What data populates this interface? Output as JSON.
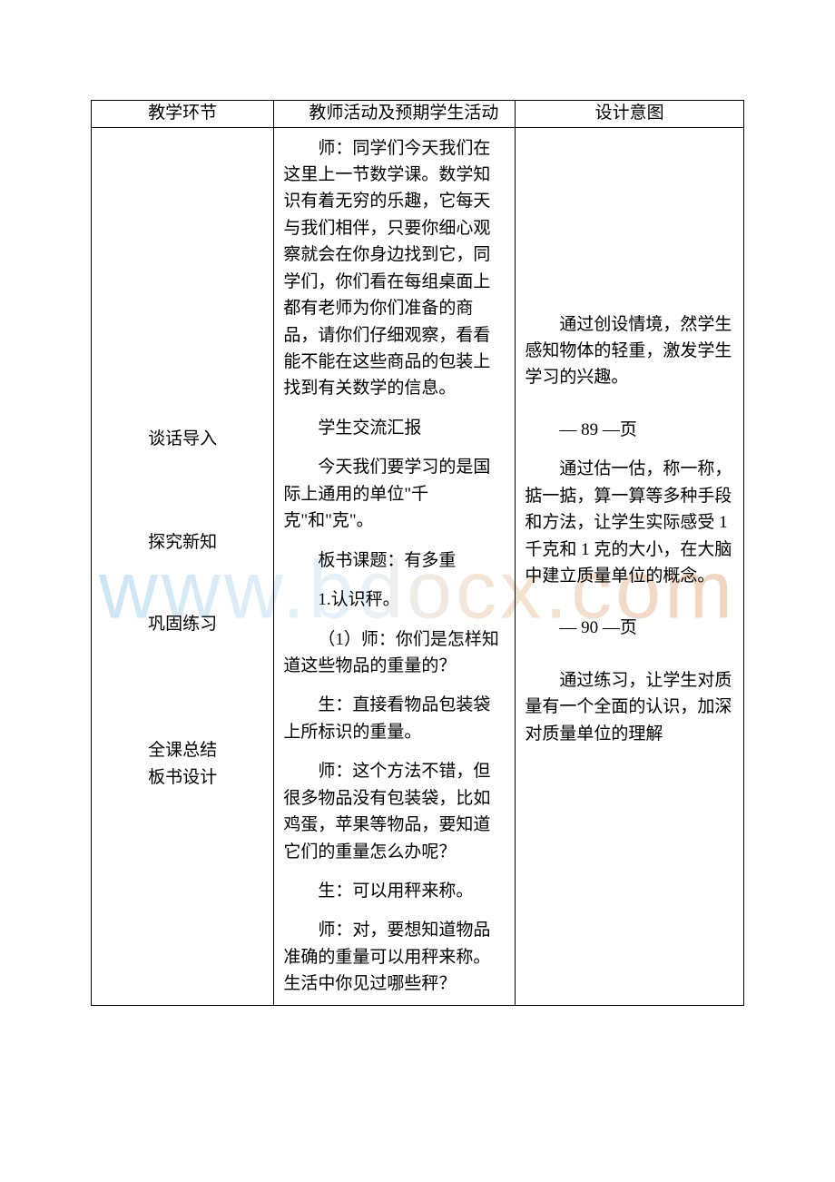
{
  "watermark": "www.bdocx.com",
  "table": {
    "header": {
      "col1": "教学环节",
      "col2": "教师活动及预期学生活动",
      "col3": "设计意图"
    },
    "col1": {
      "section1": "谈话导入",
      "section2": "探究新知",
      "section3": "巩固练习",
      "section4_line1": "全课总结",
      "section4_line2": "板书设计"
    },
    "col2": {
      "p1": "师：同学们今天我们在这里上一节数学课。数学知识有着无穷的乐趣，它每天与我们相伴，只要你细心观察就会在你身边找到它，同学们，你们看在每组桌面上都有老师为你们准备的商品，请你们仔细观察，看看能不能在这些商品的包装上找到有关数学的信息。",
      "p2": "学生交流汇报",
      "p3": "今天我们要学习的是国际上通用的单位\"千克\"和\"克\"。",
      "p4": "板书课题：有多重",
      "p5": "1.认识秤。",
      "p6": "（1）师：你们是怎样知道这些物品的重量的？",
      "p7": "生：直接看物品包装袋上所标识的重量。",
      "p8": "师：这个方法不错，但很多物品没有包装袋，比如鸡蛋，苹果等物品，要知道它们的重量怎么办呢？",
      "p9": "生：可以用秤来称。",
      "p10": "师：对，要想知道物品准确的重量可以用秤来称。生活中你见过哪些秤？"
    },
    "col3": {
      "p1": "通过创设情境，然学生感知物体的轻重，激发学生学习的兴趣。",
      "p2": "— 89 —页",
      "p3": "通过估一估，称一称，掂一掂，算一算等多种手段和方法，让学生实际感受 1 千克和 1 克的大小，在大脑中建立质量单位的概念。",
      "p4": "— 90 —页",
      "p5": "通过练习，让学生对质量有一个全面的认识，加深对质量单位的理解"
    }
  },
  "style": {
    "font_family": "SimSun",
    "font_size_body": 19,
    "font_size_watermark": 90,
    "text_color": "#000000",
    "border_color": "#000000",
    "background_color": "#ffffff",
    "watermark_gradient_start": "#cce5f5",
    "watermark_gradient_end": "#f0d5c0",
    "line_height": 1.55,
    "text_indent_em": 2,
    "page_padding_top": 110,
    "page_padding_side": 100,
    "col_widths_pct": [
      28,
      37,
      35
    ]
  }
}
